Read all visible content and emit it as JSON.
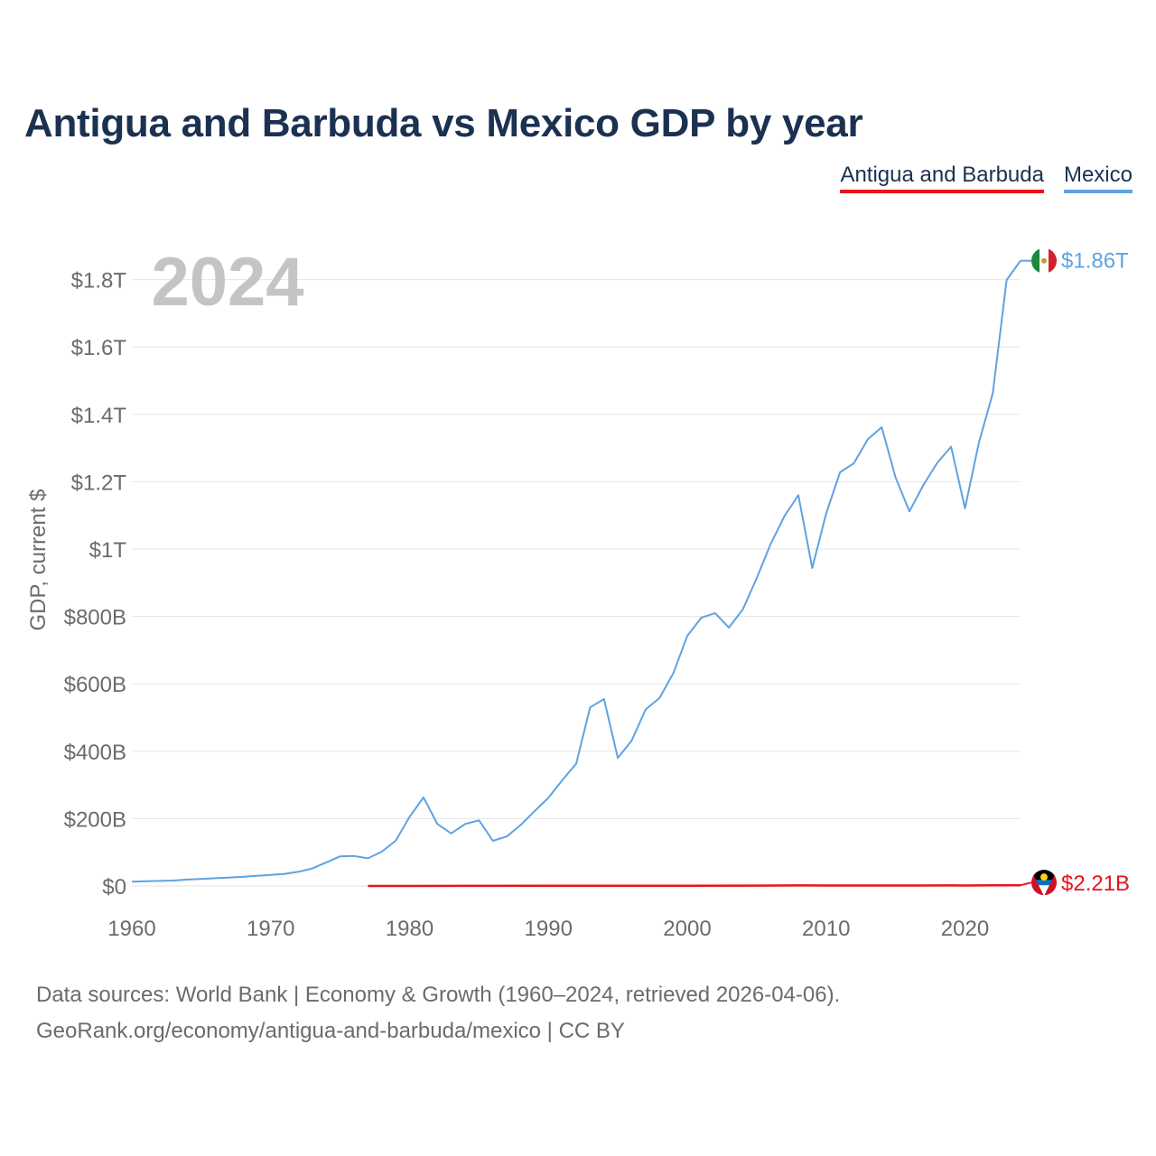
{
  "title": "Antigua and Barbuda vs Mexico GDP by year",
  "legend": {
    "antigua": "Antigua and Barbuda",
    "mexico": "Mexico"
  },
  "year_label": "2024",
  "footer": {
    "line1": "Data sources: World Bank | Economy & Growth (1960–2024, retrieved 2026-04-06).",
    "line2": "GeoRank.org/economy/antigua-and-barbuda/mexico | CC BY"
  },
  "colors": {
    "antigua": "#e8131b",
    "mexico": "#5fa2e2",
    "title": "#1b3151",
    "axis_text": "#6b6b6b",
    "grid": "#e6e6e6",
    "year": "#c4c4c4"
  },
  "chart_data": {
    "type": "line",
    "title": "Antigua and Barbuda vs Mexico GDP by year",
    "xlabel": "",
    "ylabel": "GDP, current $",
    "xlim": [
      1960,
      2024
    ],
    "ylim": [
      0,
      1.86
    ],
    "y_unit": "trillion USD",
    "x_ticks": [
      1960,
      1970,
      1980,
      1990,
      2000,
      2010,
      2020
    ],
    "x_tick_labels": [
      "1960",
      "1970",
      "1980",
      "1990",
      "2000",
      "2010",
      "2020"
    ],
    "y_ticks": [
      0,
      0.2,
      0.4,
      0.6,
      0.8,
      1.0,
      1.2,
      1.4,
      1.6,
      1.8
    ],
    "y_tick_labels": [
      "$0",
      "$200B",
      "$400B",
      "$600B",
      "$800B",
      "$1T",
      "$1.2T",
      "$1.4T",
      "$1.6T",
      "$1.8T"
    ],
    "grid": true,
    "legend_position": "top-right",
    "series": [
      {
        "name": "Mexico",
        "end_label": "$1.86T",
        "x": [
          1960,
          1961,
          1962,
          1963,
          1964,
          1965,
          1966,
          1967,
          1968,
          1969,
          1970,
          1971,
          1972,
          1973,
          1974,
          1975,
          1976,
          1977,
          1978,
          1979,
          1980,
          1981,
          1982,
          1983,
          1984,
          1985,
          1986,
          1987,
          1988,
          1989,
          1990,
          1991,
          1992,
          1993,
          1994,
          1995,
          1996,
          1997,
          1998,
          1999,
          2000,
          2001,
          2002,
          2003,
          2004,
          2005,
          2006,
          2007,
          2008,
          2009,
          2010,
          2011,
          2012,
          2013,
          2014,
          2015,
          2016,
          2017,
          2018,
          2019,
          2020,
          2021,
          2022,
          2023,
          2024
        ],
        "values": [
          0.013,
          0.014,
          0.015,
          0.016,
          0.019,
          0.021,
          0.023,
          0.025,
          0.027,
          0.03,
          0.033,
          0.036,
          0.042,
          0.052,
          0.07,
          0.088,
          0.089,
          0.082,
          0.102,
          0.134,
          0.205,
          0.263,
          0.184,
          0.156,
          0.184,
          0.195,
          0.134,
          0.147,
          0.181,
          0.222,
          0.262,
          0.314,
          0.363,
          0.53,
          0.555,
          0.38,
          0.432,
          0.524,
          0.558,
          0.632,
          0.742,
          0.796,
          0.81,
          0.767,
          0.821,
          0.914,
          1.015,
          1.098,
          1.16,
          0.944,
          1.106,
          1.228,
          1.255,
          1.326,
          1.362,
          1.213,
          1.112,
          1.19,
          1.256,
          1.304,
          1.121,
          1.316,
          1.463,
          1.799,
          1.856
        ]
      },
      {
        "name": "Antigua and Barbuda",
        "end_label": "$2.21B",
        "x": [
          1977,
          1980,
          1985,
          1990,
          1995,
          2000,
          2005,
          2008,
          2010,
          2015,
          2019,
          2020,
          2022,
          2024
        ],
        "values": [
          8e-05,
          0.00013,
          0.00032,
          0.00052,
          0.00062,
          0.00083,
          0.0011,
          0.00155,
          0.00136,
          0.00145,
          0.00169,
          0.00141,
          0.00178,
          0.00221
        ]
      }
    ]
  }
}
